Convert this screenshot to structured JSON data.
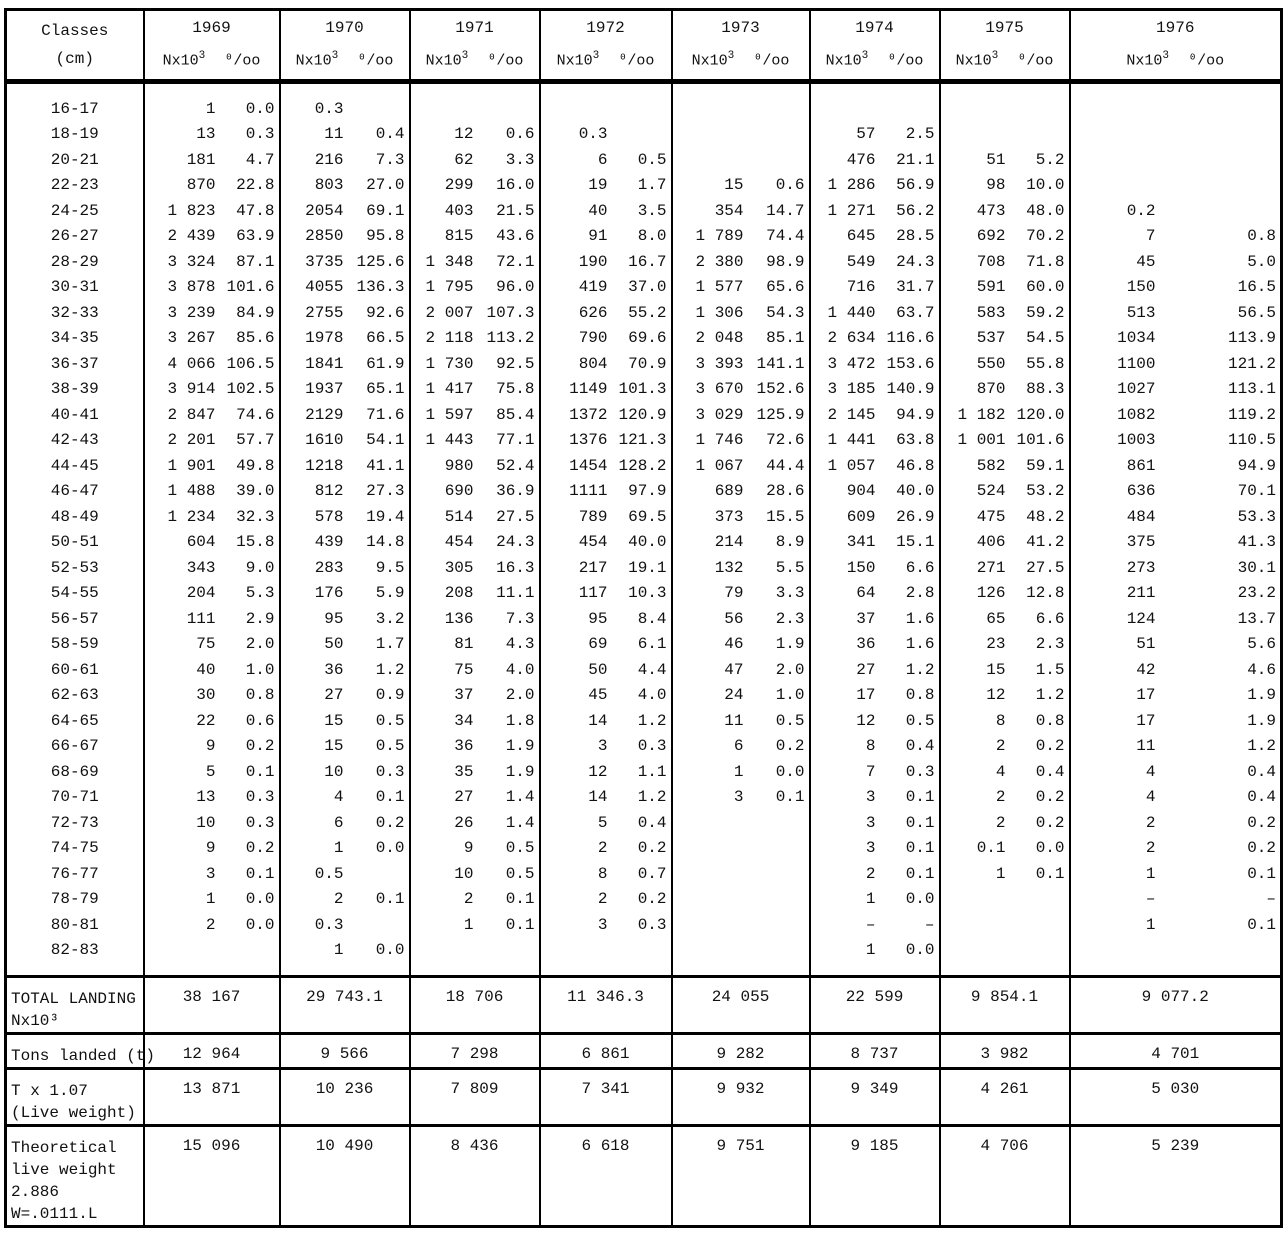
{
  "header": {
    "classes_label": "Classes",
    "unit_label": "(cm)",
    "n_label": "Nx10",
    "n_exp": "3",
    "permil_label": "⁰/oo"
  },
  "years": [
    "1969",
    "1970",
    "1971",
    "1972",
    "1973",
    "1974",
    "1975",
    "1976"
  ],
  "classes": [
    "16-17",
    "18-19",
    "20-21",
    "22-23",
    "24-25",
    "26-27",
    "28-29",
    "30-31",
    "32-33",
    "34-35",
    "36-37",
    "38-39",
    "40-41",
    "42-43",
    "44-45",
    "46-47",
    "48-49",
    "50-51",
    "52-53",
    "54-55",
    "56-57",
    "58-59",
    "60-61",
    "62-63",
    "64-65",
    "66-67",
    "68-69",
    "70-71",
    "72-73",
    "74-75",
    "76-77",
    "78-79",
    "80-81",
    "82-83"
  ],
  "n": {
    "1969": [
      "1",
      "13",
      "181",
      "870",
      "1 823",
      "2 439",
      "3 324",
      "3 878",
      "3 239",
      "3 267",
      "4 066",
      "3 914",
      "2 847",
      "2 201",
      "1 901",
      "1 488",
      "1 234",
      "604",
      "343",
      "204",
      "111",
      "75",
      "40",
      "30",
      "22",
      "9",
      "5",
      "13",
      "10",
      "9",
      "3",
      "1",
      "2",
      ""
    ],
    "1970": [
      "0.3",
      "11",
      "216",
      "803",
      "2054",
      "2850",
      "3735",
      "4055",
      "2755",
      "1978",
      "1841",
      "1937",
      "2129",
      "1610",
      "1218",
      "812",
      "578",
      "439",
      "283",
      "176",
      "95",
      "50",
      "36",
      "27",
      "15",
      "15",
      "10",
      "4",
      "6",
      "1",
      "0.5",
      "2",
      "0.3",
      "1"
    ],
    "1971": [
      "",
      "12",
      "62",
      "299",
      "403",
      "815",
      "1 348",
      "1 795",
      "2 007",
      "2 118",
      "1 730",
      "1 417",
      "1 597",
      "1 443",
      "980",
      "690",
      "514",
      "454",
      "305",
      "208",
      "136",
      "81",
      "75",
      "37",
      "34",
      "36",
      "35",
      "27",
      "26",
      "9",
      "10",
      "2",
      "1",
      ""
    ],
    "1972": [
      "",
      "0.3",
      "6",
      "19",
      "40",
      "91",
      "190",
      "419",
      "626",
      "790",
      "804",
      "1149",
      "1372",
      "1376",
      "1454",
      "1111",
      "789",
      "454",
      "217",
      "117",
      "95",
      "69",
      "50",
      "45",
      "14",
      "3",
      "12",
      "14",
      "5",
      "2",
      "8",
      "2",
      "3",
      ""
    ],
    "1973": [
      "",
      "",
      "",
      "15",
      "354",
      "1 789",
      "2 380",
      "1 577",
      "1 306",
      "2 048",
      "3 393",
      "3 670",
      "3 029",
      "1 746",
      "1 067",
      "689",
      "373",
      "214",
      "132",
      "79",
      "56",
      "46",
      "47",
      "24",
      "11",
      "6",
      "1",
      "3",
      "",
      "",
      "",
      "",
      "",
      ""
    ],
    "1974": [
      "",
      "57",
      "476",
      "1 286",
      "1 271",
      "645",
      "549",
      "716",
      "1 440",
      "2 634",
      "3 472",
      "3 185",
      "2 145",
      "1 441",
      "1 057",
      "904",
      "609",
      "341",
      "150",
      "64",
      "37",
      "36",
      "27",
      "17",
      "12",
      "8",
      "7",
      "3",
      "3",
      "3",
      "2",
      "1",
      "–",
      "1"
    ],
    "1975": [
      "",
      "",
      "51",
      "98",
      "473",
      "692",
      "708",
      "591",
      "583",
      "537",
      "550",
      "870",
      "1 182",
      "1 001",
      "582",
      "524",
      "475",
      "406",
      "271",
      "126",
      "65",
      "23",
      "15",
      "12",
      "8",
      "2",
      "4",
      "2",
      "2",
      "0.1",
      "1",
      "",
      "",
      ""
    ],
    "1976": [
      "",
      "",
      "",
      "",
      "0.2",
      "7",
      "45",
      "150",
      "513",
      "1034",
      "1100",
      "1027",
      "1082",
      "1003",
      "861",
      "636",
      "484",
      "375",
      "273",
      "211",
      "124",
      "51",
      "42",
      "17",
      "17",
      "11",
      "4",
      "4",
      "2",
      "2",
      "1",
      "–",
      "1",
      ""
    ]
  },
  "permil": {
    "1969": [
      "0.0",
      "0.3",
      "4.7",
      "22.8",
      "47.8",
      "63.9",
      "87.1",
      "101.6",
      "84.9",
      "85.6",
      "106.5",
      "102.5",
      "74.6",
      "57.7",
      "49.8",
      "39.0",
      "32.3",
      "15.8",
      "9.0",
      "5.3",
      "2.9",
      "2.0",
      "1.0",
      "0.8",
      "0.6",
      "0.2",
      "0.1",
      "0.3",
      "0.3",
      "0.2",
      "0.1",
      "0.0",
      "0.0",
      ""
    ],
    "1970": [
      "",
      "0.4",
      "7.3",
      "27.0",
      "69.1",
      "95.8",
      "125.6",
      "136.3",
      "92.6",
      "66.5",
      "61.9",
      "65.1",
      "71.6",
      "54.1",
      "41.1",
      "27.3",
      "19.4",
      "14.8",
      "9.5",
      "5.9",
      "3.2",
      "1.7",
      "1.2",
      "0.9",
      "0.5",
      "0.5",
      "0.3",
      "0.1",
      "0.2",
      "0.0",
      "",
      "0.1",
      "",
      "0.0"
    ],
    "1971": [
      "",
      "0.6",
      "3.3",
      "16.0",
      "21.5",
      "43.6",
      "72.1",
      "96.0",
      "107.3",
      "113.2",
      "92.5",
      "75.8",
      "85.4",
      "77.1",
      "52.4",
      "36.9",
      "27.5",
      "24.3",
      "16.3",
      "11.1",
      "7.3",
      "4.3",
      "4.0",
      "2.0",
      "1.8",
      "1.9",
      "1.9",
      "1.4",
      "1.4",
      "0.5",
      "0.5",
      "0.1",
      "0.1",
      ""
    ],
    "1972": [
      "",
      "",
      "0.5",
      "1.7",
      "3.5",
      "8.0",
      "16.7",
      "37.0",
      "55.2",
      "69.6",
      "70.9",
      "101.3",
      "120.9",
      "121.3",
      "128.2",
      "97.9",
      "69.5",
      "40.0",
      "19.1",
      "10.3",
      "8.4",
      "6.1",
      "4.4",
      "4.0",
      "1.2",
      "0.3",
      "1.1",
      "1.2",
      "0.4",
      "0.2",
      "0.7",
      "0.2",
      "0.3",
      ""
    ],
    "1973": [
      "",
      "",
      "",
      "0.6",
      "14.7",
      "74.4",
      "98.9",
      "65.6",
      "54.3",
      "85.1",
      "141.1",
      "152.6",
      "125.9",
      "72.6",
      "44.4",
      "28.6",
      "15.5",
      "8.9",
      "5.5",
      "3.3",
      "2.3",
      "1.9",
      "2.0",
      "1.0",
      "0.5",
      "0.2",
      "0.0",
      "0.1",
      "",
      "",
      "",
      "",
      "",
      ""
    ],
    "1974": [
      "",
      "2.5",
      "21.1",
      "56.9",
      "56.2",
      "28.5",
      "24.3",
      "31.7",
      "63.7",
      "116.6",
      "153.6",
      "140.9",
      "94.9",
      "63.8",
      "46.8",
      "40.0",
      "26.9",
      "15.1",
      "6.6",
      "2.8",
      "1.6",
      "1.6",
      "1.2",
      "0.8",
      "0.5",
      "0.4",
      "0.3",
      "0.1",
      "0.1",
      "0.1",
      "0.1",
      "0.0",
      "–",
      "0.0"
    ],
    "1975": [
      "",
      "",
      "5.2",
      "10.0",
      "48.0",
      "70.2",
      "71.8",
      "60.0",
      "59.2",
      "54.5",
      "55.8",
      "88.3",
      "120.0",
      "101.6",
      "59.1",
      "53.2",
      "48.2",
      "41.2",
      "27.5",
      "12.8",
      "6.6",
      "2.3",
      "1.5",
      "1.2",
      "0.8",
      "0.2",
      "0.4",
      "0.2",
      "0.2",
      "0.0",
      "0.1",
      "",
      "",
      ""
    ],
    "1976": [
      "",
      "",
      "",
      "",
      "",
      "0.8",
      "5.0",
      "16.5",
      "56.5",
      "113.9",
      "121.2",
      "113.1",
      "119.2",
      "110.5",
      "94.9",
      "70.1",
      "53.3",
      "41.3",
      "30.1",
      "23.2",
      "13.7",
      "5.6",
      "4.6",
      "1.9",
      "1.9",
      "1.2",
      "0.4",
      "0.4",
      "0.2",
      "0.2",
      "0.1",
      "–",
      "0.1",
      ""
    ]
  },
  "summary": [
    {
      "label": [
        "TOTAL LANDING",
        "Nx10³"
      ],
      "values": [
        "38 167",
        "29 743.1",
        "18 706",
        "11 346.3",
        "24 055",
        "22 599",
        "9 854.1",
        "9 077.2"
      ]
    },
    {
      "label": [
        "Tons landed (t)"
      ],
      "values": [
        "12 964",
        "9 566",
        "7 298",
        "6 861",
        "9 282",
        "8 737",
        "3 982",
        "4 701"
      ]
    },
    {
      "label": [
        "T x 1.07",
        "(Live weight)"
      ],
      "values": [
        "13 871",
        "10 236",
        "7 809",
        "7 341",
        "9 932",
        "9 349",
        "4 261",
        "5 030"
      ]
    },
    {
      "label": [
        "Theoretical",
        "live weight",
        "2.886",
        "W=.0111.L"
      ],
      "values": [
        "15 096",
        "10 490",
        "8 436",
        "6 618",
        "9 751",
        "9 185",
        "4 706",
        "5 239"
      ]
    }
  ]
}
